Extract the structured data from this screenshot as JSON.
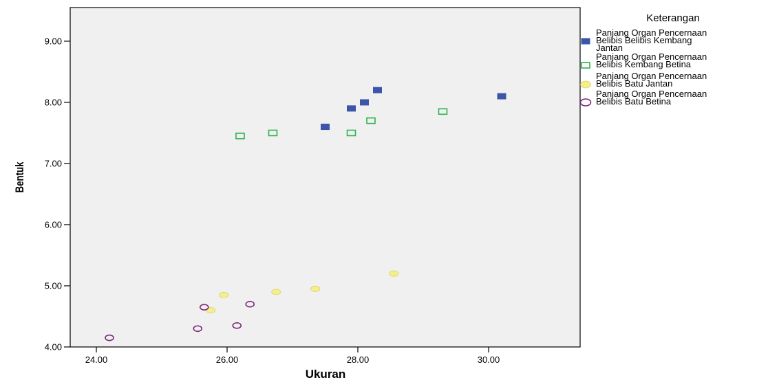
{
  "chart_data": {
    "type": "scatter",
    "title": "",
    "xlabel": "Ukuran",
    "ylabel": "Bentuk",
    "xlim": [
      23.6,
      31.4
    ],
    "ylim": [
      4.0,
      9.55
    ],
    "x_ticks": [
      "24.00",
      "26.00",
      "28.00",
      "30.00"
    ],
    "x_tick_values": [
      24,
      26,
      28,
      30
    ],
    "y_ticks": [
      "4.00",
      "5.00",
      "6.00",
      "7.00",
      "8.00",
      "9.00"
    ],
    "y_tick_values": [
      4,
      5,
      6,
      7,
      8,
      9
    ],
    "grid": false,
    "legend_title": "Keterangan",
    "legend_placement": "right",
    "plot_background": "#f0f0f0",
    "series": [
      {
        "name": "Panjang Organ Pencernaan Belibis Belibis Kembang Jantan",
        "name_lines": [
          "Panjang Organ Pencernaan",
          "Belibis Belibis Kembang",
          "Jantan"
        ],
        "marker": "filled-square",
        "color": "#3d55a8",
        "points": [
          {
            "x": 27.5,
            "y": 7.6
          },
          {
            "x": 27.9,
            "y": 7.9
          },
          {
            "x": 28.1,
            "y": 8.0
          },
          {
            "x": 28.3,
            "y": 8.2
          },
          {
            "x": 30.2,
            "y": 8.1
          }
        ]
      },
      {
        "name": "Panjang Organ Pencernaan Belibis Kembang Betina",
        "name_lines": [
          "Panjang Organ Pencernaan",
          "Belibis Kembang Betina"
        ],
        "marker": "hollow-square",
        "color": "#2db34a",
        "points": [
          {
            "x": 26.2,
            "y": 7.45
          },
          {
            "x": 26.7,
            "y": 7.5
          },
          {
            "x": 27.9,
            "y": 7.5
          },
          {
            "x": 28.2,
            "y": 7.7
          },
          {
            "x": 29.3,
            "y": 7.85
          }
        ]
      },
      {
        "name": "Panjang Organ Pencernaan Belibis Batu Jantan",
        "name_lines": [
          "Panjang Organ Pencernaan",
          "Belibis Batu Jantan"
        ],
        "marker": "filled-circle",
        "color": "#f4ef8a",
        "stroke": "#d8d260",
        "points": [
          {
            "x": 25.75,
            "y": 4.6
          },
          {
            "x": 25.95,
            "y": 4.85
          },
          {
            "x": 26.75,
            "y": 4.9
          },
          {
            "x": 27.35,
            "y": 4.95
          },
          {
            "x": 28.55,
            "y": 5.2
          }
        ]
      },
      {
        "name": "Panjang Organ Pencernaan Belibis Batu Betina",
        "name_lines": [
          "Panjang Organ Pencernaan",
          "Belibis Batu Betina"
        ],
        "marker": "hollow-circle",
        "color": "#7b2a78",
        "points": [
          {
            "x": 24.2,
            "y": 4.15
          },
          {
            "x": 25.55,
            "y": 4.3
          },
          {
            "x": 25.65,
            "y": 4.65
          },
          {
            "x": 26.15,
            "y": 4.35
          },
          {
            "x": 26.35,
            "y": 4.7
          }
        ]
      }
    ]
  }
}
